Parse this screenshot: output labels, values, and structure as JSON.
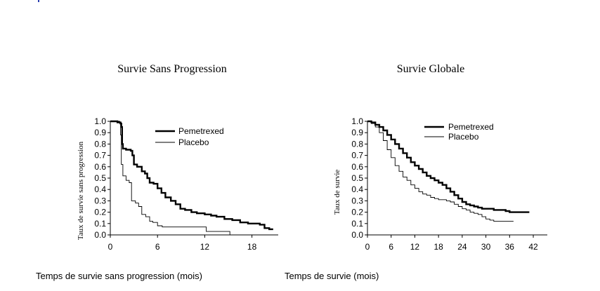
{
  "chart_data": [
    {
      "type": "line",
      "title": "Survie Sans Progression",
      "ylabel": "Taux de survie sans progression",
      "xlabel": "Temps de survie sans progression (mois)",
      "xlim": [
        0,
        21
      ],
      "ylim": [
        0,
        1.0
      ],
      "xticks": [
        0,
        6,
        12,
        18
      ],
      "yticks": [
        "0.0",
        "0.1",
        "0.2",
        "0.3",
        "0.4",
        "0.5",
        "0.6",
        "0.7",
        "0.8",
        "0.9",
        "1.0"
      ],
      "legend_position": "top-right",
      "series": [
        {
          "name": "Pemetrexed",
          "style": "thick",
          "color": "#000000",
          "points": [
            [
              0,
              1.0
            ],
            [
              0.8,
              1.0
            ],
            [
              0.9,
              0.99
            ],
            [
              1.3,
              0.98
            ],
            [
              1.4,
              0.95
            ],
            [
              1.5,
              0.8
            ],
            [
              1.6,
              0.76
            ],
            [
              2.0,
              0.75
            ],
            [
              2.6,
              0.74
            ],
            [
              2.8,
              0.7
            ],
            [
              3.0,
              0.62
            ],
            [
              3.4,
              0.6
            ],
            [
              4.0,
              0.56
            ],
            [
              4.4,
              0.54
            ],
            [
              4.7,
              0.5
            ],
            [
              5.0,
              0.46
            ],
            [
              5.5,
              0.45
            ],
            [
              6.0,
              0.41
            ],
            [
              6.5,
              0.37
            ],
            [
              7.0,
              0.33
            ],
            [
              7.7,
              0.3
            ],
            [
              8.3,
              0.27
            ],
            [
              8.9,
              0.23
            ],
            [
              9.5,
              0.22
            ],
            [
              10.3,
              0.2
            ],
            [
              11.0,
              0.19
            ],
            [
              12.0,
              0.18
            ],
            [
              12.8,
              0.17
            ],
            [
              13.5,
              0.16
            ],
            [
              14.5,
              0.14
            ],
            [
              15.5,
              0.13
            ],
            [
              16.5,
              0.11
            ],
            [
              17.5,
              0.1
            ],
            [
              19.0,
              0.09
            ],
            [
              19.6,
              0.06
            ],
            [
              20.2,
              0.05
            ],
            [
              20.7,
              0.05
            ]
          ]
        },
        {
          "name": "Placebo",
          "style": "thin",
          "color": "#000000",
          "points": [
            [
              0,
              1.0
            ],
            [
              1.0,
              1.0
            ],
            [
              1.2,
              0.98
            ],
            [
              1.3,
              0.88
            ],
            [
              1.4,
              0.62
            ],
            [
              1.6,
              0.52
            ],
            [
              2.0,
              0.48
            ],
            [
              2.4,
              0.46
            ],
            [
              2.7,
              0.3
            ],
            [
              3.2,
              0.28
            ],
            [
              3.6,
              0.25
            ],
            [
              4.0,
              0.18
            ],
            [
              4.5,
              0.16
            ],
            [
              5.0,
              0.12
            ],
            [
              5.4,
              0.11
            ],
            [
              6.0,
              0.08
            ],
            [
              6.6,
              0.07
            ],
            [
              12.0,
              0.07
            ],
            [
              12.2,
              0.03
            ],
            [
              15.2,
              0.03
            ],
            [
              15.2,
              0.0
            ]
          ]
        }
      ]
    },
    {
      "type": "line",
      "title": "Survie Globale",
      "ylabel": "Taux de survie",
      "xlabel": "Temps de survie (mois)",
      "xlim": [
        0,
        45
      ],
      "ylim": [
        0,
        1.0
      ],
      "xticks": [
        0,
        6,
        12,
        18,
        24,
        30,
        36,
        42
      ],
      "yticks": [
        "0.0",
        "0.1",
        "0.2",
        "0.3",
        "0.4",
        "0.5",
        "0.6",
        "0.7",
        "0.8",
        "0.9",
        "1.0"
      ],
      "legend_position": "top-right",
      "series": [
        {
          "name": "Pemetrexed",
          "style": "thick",
          "color": "#000000",
          "points": [
            [
              0,
              1.0
            ],
            [
              1,
              0.99
            ],
            [
              2,
              0.97
            ],
            [
              3,
              0.95
            ],
            [
              4,
              0.92
            ],
            [
              5,
              0.88
            ],
            [
              6,
              0.84
            ],
            [
              7,
              0.8
            ],
            [
              8,
              0.76
            ],
            [
              9,
              0.72
            ],
            [
              10,
              0.68
            ],
            [
              11,
              0.64
            ],
            [
              12,
              0.61
            ],
            [
              13,
              0.58
            ],
            [
              14,
              0.55
            ],
            [
              15,
              0.52
            ],
            [
              16,
              0.5
            ],
            [
              17,
              0.48
            ],
            [
              18,
              0.46
            ],
            [
              19,
              0.44
            ],
            [
              20,
              0.41
            ],
            [
              21,
              0.38
            ],
            [
              22,
              0.35
            ],
            [
              23,
              0.32
            ],
            [
              24,
              0.29
            ],
            [
              25,
              0.27
            ],
            [
              26,
              0.26
            ],
            [
              27,
              0.25
            ],
            [
              28,
              0.24
            ],
            [
              29,
              0.23
            ],
            [
              31,
              0.23
            ],
            [
              32,
              0.22
            ],
            [
              33,
              0.22
            ],
            [
              34,
              0.22
            ],
            [
              35,
              0.21
            ],
            [
              36,
              0.2
            ],
            [
              41,
              0.2
            ]
          ]
        },
        {
          "name": "Placebo",
          "style": "thin",
          "color": "#000000",
          "points": [
            [
              0,
              1.0
            ],
            [
              1,
              0.98
            ],
            [
              2,
              0.95
            ],
            [
              3,
              0.9
            ],
            [
              4,
              0.83
            ],
            [
              5,
              0.75
            ],
            [
              6,
              0.68
            ],
            [
              7,
              0.61
            ],
            [
              8,
              0.56
            ],
            [
              9,
              0.51
            ],
            [
              10,
              0.48
            ],
            [
              11,
              0.44
            ],
            [
              12,
              0.41
            ],
            [
              13,
              0.38
            ],
            [
              14,
              0.36
            ],
            [
              15,
              0.35
            ],
            [
              16,
              0.33
            ],
            [
              17,
              0.32
            ],
            [
              18,
              0.31
            ],
            [
              20,
              0.3
            ],
            [
              21,
              0.29
            ],
            [
              22,
              0.27
            ],
            [
              23,
              0.25
            ],
            [
              24,
              0.23
            ],
            [
              25,
              0.22
            ],
            [
              26,
              0.2
            ],
            [
              27,
              0.19
            ],
            [
              28,
              0.18
            ],
            [
              29,
              0.16
            ],
            [
              30,
              0.14
            ],
            [
              31,
              0.13
            ],
            [
              32,
              0.12
            ],
            [
              37,
              0.12
            ]
          ]
        }
      ]
    }
  ]
}
